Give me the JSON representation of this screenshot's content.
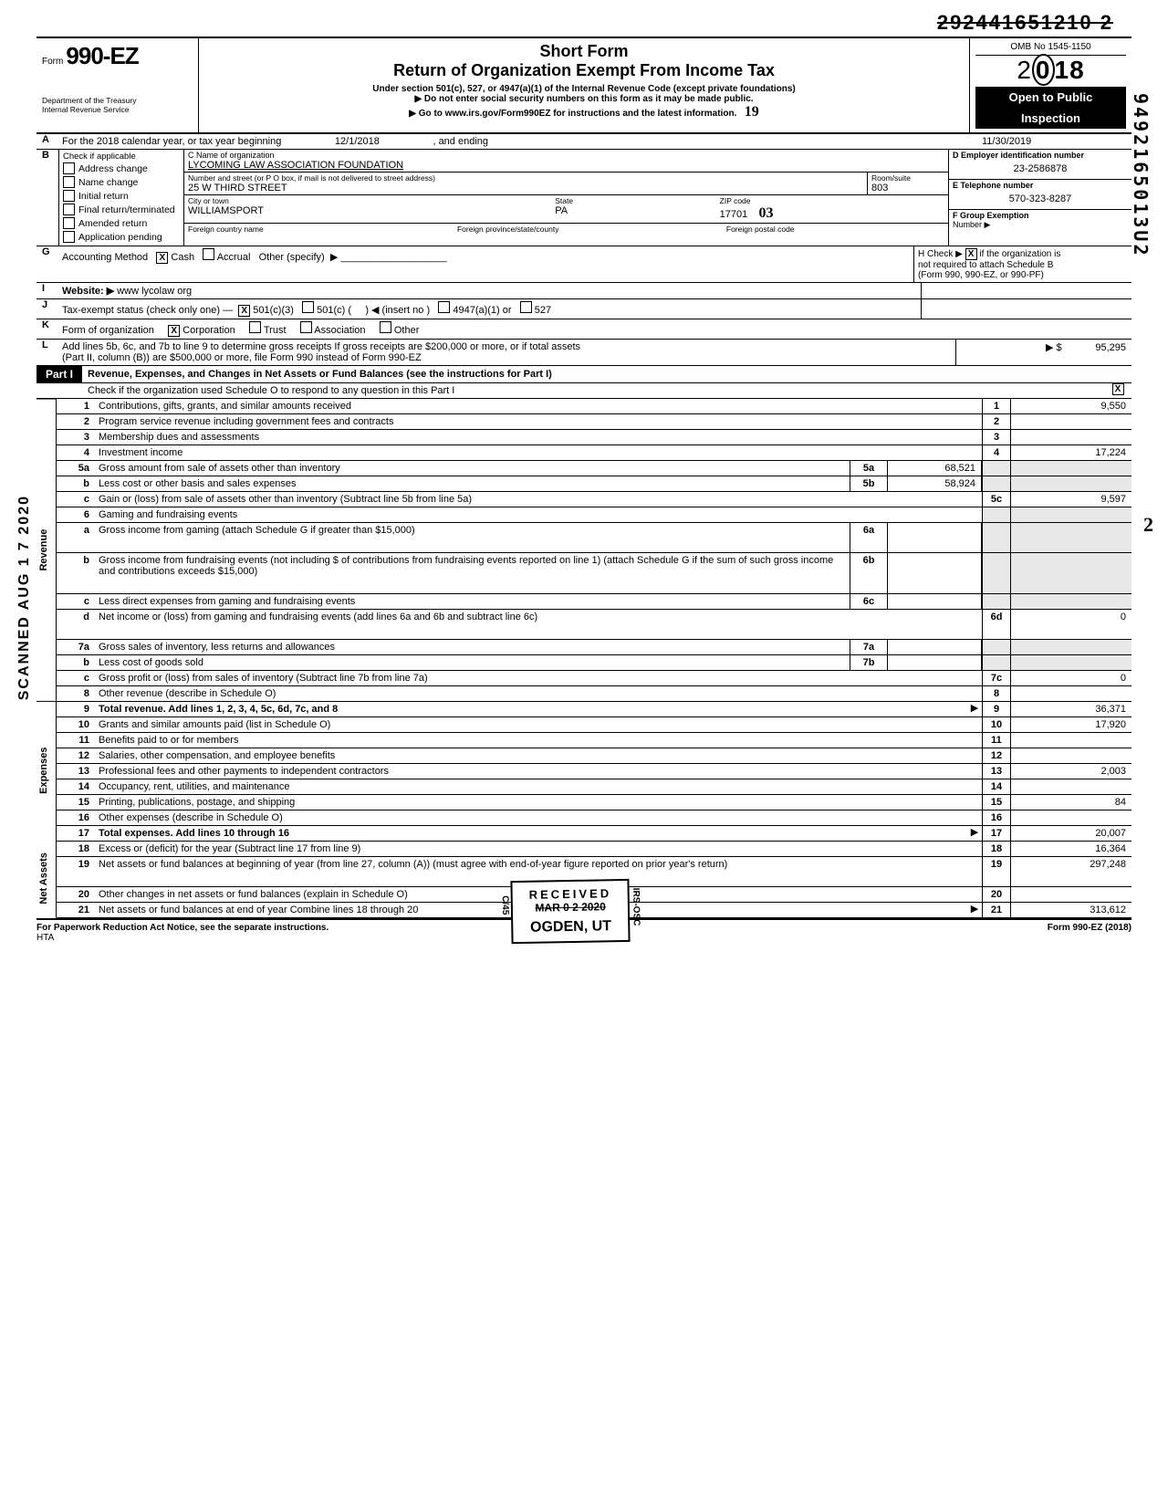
{
  "crossed_dln": "292441651210 2",
  "vertical_right": "9492165013U2",
  "form": {
    "prefix": "Form",
    "number": "990-EZ",
    "dept1": "Department of the Treasury",
    "dept2": "Internal Revenue Service"
  },
  "titles": {
    "short": "Short Form",
    "main": "Return of Organization Exempt From Income Tax",
    "sub1": "Under section 501(c), 527, or 4947(a)(1) of the Internal Revenue Code (except private foundations)",
    "sub2": "Do not enter social security numbers on this form as it may be made public.",
    "sub3": "Go to www.irs.gov/Form990EZ for instructions and the latest information."
  },
  "right_box": {
    "omb": "OMB No 1545-1150",
    "year": "2018",
    "open1": "Open to Public",
    "open2": "Inspection"
  },
  "line_a": {
    "text_pre": "For the 2018 calendar year, or tax year beginning",
    "begin": "12/1/2018",
    "mid": ", and ending",
    "end": "11/30/2019"
  },
  "b": {
    "hdr": "Check if applicable",
    "opts": [
      "Address change",
      "Name change",
      "Initial return",
      "Final return/terminated",
      "Amended return",
      "Application pending"
    ]
  },
  "c": {
    "lbl_name": "C  Name of organization",
    "name": "LYCOMING LAW ASSOCIATION FOUNDATION",
    "lbl_addr": "Number and street (or P O  box, if mail is not delivered to street address)",
    "addr": "25 W THIRD STREET",
    "room_lbl": "Room/suite",
    "room": "803",
    "lbl_city": "City or town",
    "city": "WILLIAMSPORT",
    "state_lbl": "State",
    "state": "PA",
    "zip_lbl": "ZIP code",
    "zip": "17701",
    "foreign_lbl": "Foreign country name",
    "foreign_prov": "Foreign province/state/county",
    "foreign_postal": "Foreign postal code",
    "hand": "03"
  },
  "d": {
    "lbl": "D  Employer identification number",
    "val": "23-2586878"
  },
  "e": {
    "lbl": "E  Telephone number",
    "val": "570-323-8287"
  },
  "f": {
    "lbl": "F  Group Exemption",
    "lbl2": "Number ▶"
  },
  "g": {
    "lbl": "Accounting Method",
    "cash": "Cash",
    "accrual": "Accrual",
    "other": "Other (specify)"
  },
  "h": {
    "l1": "H Check ▶",
    "l2": "if the organization is",
    "l3": "not required to attach Schedule B",
    "l4": "(Form 990, 990-EZ, or 990-PF)"
  },
  "i": {
    "lbl": "Website: ▶",
    "val": "www lycolaw org"
  },
  "j": {
    "lbl": "Tax-exempt status (check only one) —",
    "a": "501(c)(3)",
    "b": "501(c) (",
    "c": ") ◀ (insert no )",
    "d": "4947(a)(1) or",
    "e": "527"
  },
  "k": {
    "lbl": "Form of organization",
    "a": "Corporation",
    "b": "Trust",
    "c": "Association",
    "d": "Other"
  },
  "l": {
    "l1": "Add lines 5b, 6c, and 7b to line 9 to determine gross receipts  If gross receipts are $200,000 or more, or if total assets",
    "l2": "(Part II, column (B)) are $500,000 or more, file Form 990 instead of Form 990-EZ",
    "amt": "95,295"
  },
  "part1": {
    "label": "Part I",
    "title": "Revenue, Expenses, and Changes in Net Assets or Fund Balances (see the instructions for Part I)",
    "check": "Check if the organization used Schedule O to respond to any question in this Part I"
  },
  "side_stamp": "SCANNED AUG 1 7 2020",
  "sections": {
    "revenue": "Revenue",
    "expenses": "Expenses",
    "netassets": "Net Assets"
  },
  "lines": {
    "1": {
      "d": "Contributions, gifts, grants, and similar amounts received",
      "n": "1",
      "a": "9,550"
    },
    "2": {
      "d": "Program service revenue including government fees and contracts",
      "n": "2",
      "a": ""
    },
    "3": {
      "d": "Membership dues and assessments",
      "n": "3",
      "a": ""
    },
    "4": {
      "d": "Investment income",
      "n": "4",
      "a": "17,224"
    },
    "5a": {
      "d": "Gross amount from sale of assets other than inventory",
      "sb": "5a",
      "sv": "68,521"
    },
    "5b": {
      "d": "Less  cost or other basis and sales expenses",
      "sb": "5b",
      "sv": "58,924"
    },
    "5c": {
      "d": "Gain or (loss) from sale of assets other than inventory (Subtract line 5b from line 5a)",
      "n": "5c",
      "a": "9,597"
    },
    "6": {
      "d": "Gaming and fundraising events"
    },
    "6a": {
      "d": "Gross income from gaming (attach Schedule G if greater than $15,000)",
      "sb": "6a",
      "sv": ""
    },
    "6b": {
      "d": "Gross income from fundraising events (not including        $                    of contributions from fundraising events reported on line 1) (attach Schedule G if the sum of such gross income and contributions exceeds $15,000)",
      "sb": "6b",
      "sv": ""
    },
    "6c": {
      "d": "Less  direct expenses from gaming and fundraising events",
      "sb": "6c",
      "sv": ""
    },
    "6d": {
      "d": "Net income or (loss) from gaming and fundraising events (add lines 6a and 6b and subtract line 6c)",
      "n": "6d",
      "a": "0"
    },
    "7a": {
      "d": "Gross sales of inventory, less returns and allowances",
      "sb": "7a",
      "sv": ""
    },
    "7b": {
      "d": "Less cost of goods sold",
      "sb": "7b",
      "sv": ""
    },
    "7c": {
      "d": "Gross profit or (loss) from sales of inventory (Subtract line 7b from line 7a)",
      "n": "7c",
      "a": "0"
    },
    "8": {
      "d": "Other revenue (describe in Schedule O)",
      "n": "8",
      "a": ""
    },
    "9": {
      "d": "Total revenue. Add lines 1, 2, 3, 4, 5c, 6d, 7c, and 8",
      "n": "9",
      "a": "36,371",
      "bold": true
    },
    "10": {
      "d": "Grants and similar amounts paid (list in Schedule O)",
      "n": "10",
      "a": "17,920"
    },
    "11": {
      "d": "Benefits paid to or for members",
      "n": "11",
      "a": ""
    },
    "12": {
      "d": "Salaries, other compensation, and employee benefits",
      "n": "12",
      "a": ""
    },
    "13": {
      "d": "Professional fees and other payments to independent contractors",
      "n": "13",
      "a": "2,003"
    },
    "14": {
      "d": "Occupancy, rent, utilities, and maintenance",
      "n": "14",
      "a": ""
    },
    "15": {
      "d": "Printing, publications, postage, and shipping",
      "n": "15",
      "a": "84"
    },
    "16": {
      "d": "Other expenses (describe in Schedule O)",
      "n": "16",
      "a": ""
    },
    "17": {
      "d": "Total expenses. Add lines 10 through 16",
      "n": "17",
      "a": "20,007",
      "bold": true
    },
    "18": {
      "d": "Excess or (deficit) for the year (Subtract line 17 from line 9)",
      "n": "18",
      "a": "16,364"
    },
    "19": {
      "d": "Net assets or fund balances at beginning of year (from line 27, column (A)) (must agree with end-of-year figure reported on prior year's return)",
      "n": "19",
      "a": "297,248"
    },
    "20": {
      "d": "Other changes in net assets or fund balances (explain in Schedule O)",
      "n": "20",
      "a": ""
    },
    "21": {
      "d": "Net assets or fund balances at end of year  Combine lines 18 through 20",
      "n": "21",
      "a": "313,612"
    }
  },
  "stamp": {
    "l1": "RECEIVED",
    "l2": "MAR 0 2 2020",
    "l3": "OGDEN, UT",
    "side": "IRS-OSC",
    "side2": "C/45"
  },
  "footer": {
    "left": "For Paperwork Reduction Act Notice, see the separate instructions.",
    "hta": "HTA",
    "right": "Form 990-EZ (2018)"
  },
  "hand_mark": "19",
  "hand_mark2": "2"
}
